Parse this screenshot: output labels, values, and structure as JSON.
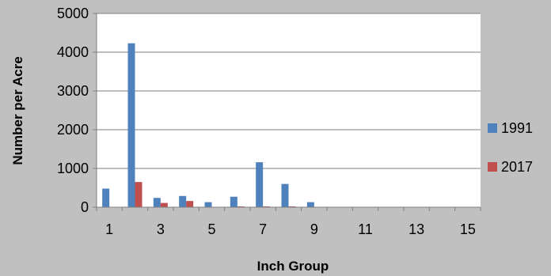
{
  "chart_data": {
    "type": "bar",
    "title": "",
    "xlabel": "Inch Group",
    "ylabel": "Number per Acre",
    "ylim": [
      0,
      5000
    ],
    "yticks": [
      0,
      1000,
      2000,
      3000,
      4000,
      5000
    ],
    "categories": [
      "1",
      "2",
      "3",
      "4",
      "5",
      "6",
      "7",
      "8",
      "9",
      "10",
      "11",
      "12",
      "13",
      "14",
      "15"
    ],
    "xtick_labels_shown": [
      "1",
      "3",
      "5",
      "7",
      "9",
      "11",
      "13",
      "15"
    ],
    "grid": true,
    "legend_position": "right",
    "series": [
      {
        "name": "1991",
        "color": "#4f81bd",
        "values": [
          480,
          4230,
          240,
          290,
          130,
          270,
          1160,
          600,
          130,
          0,
          0,
          0,
          0,
          0,
          0
        ]
      },
      {
        "name": "2017",
        "color": "#c0504d",
        "values": [
          0,
          650,
          110,
          160,
          10,
          20,
          20,
          20,
          10,
          10,
          0,
          0,
          0,
          0,
          0
        ]
      }
    ]
  }
}
